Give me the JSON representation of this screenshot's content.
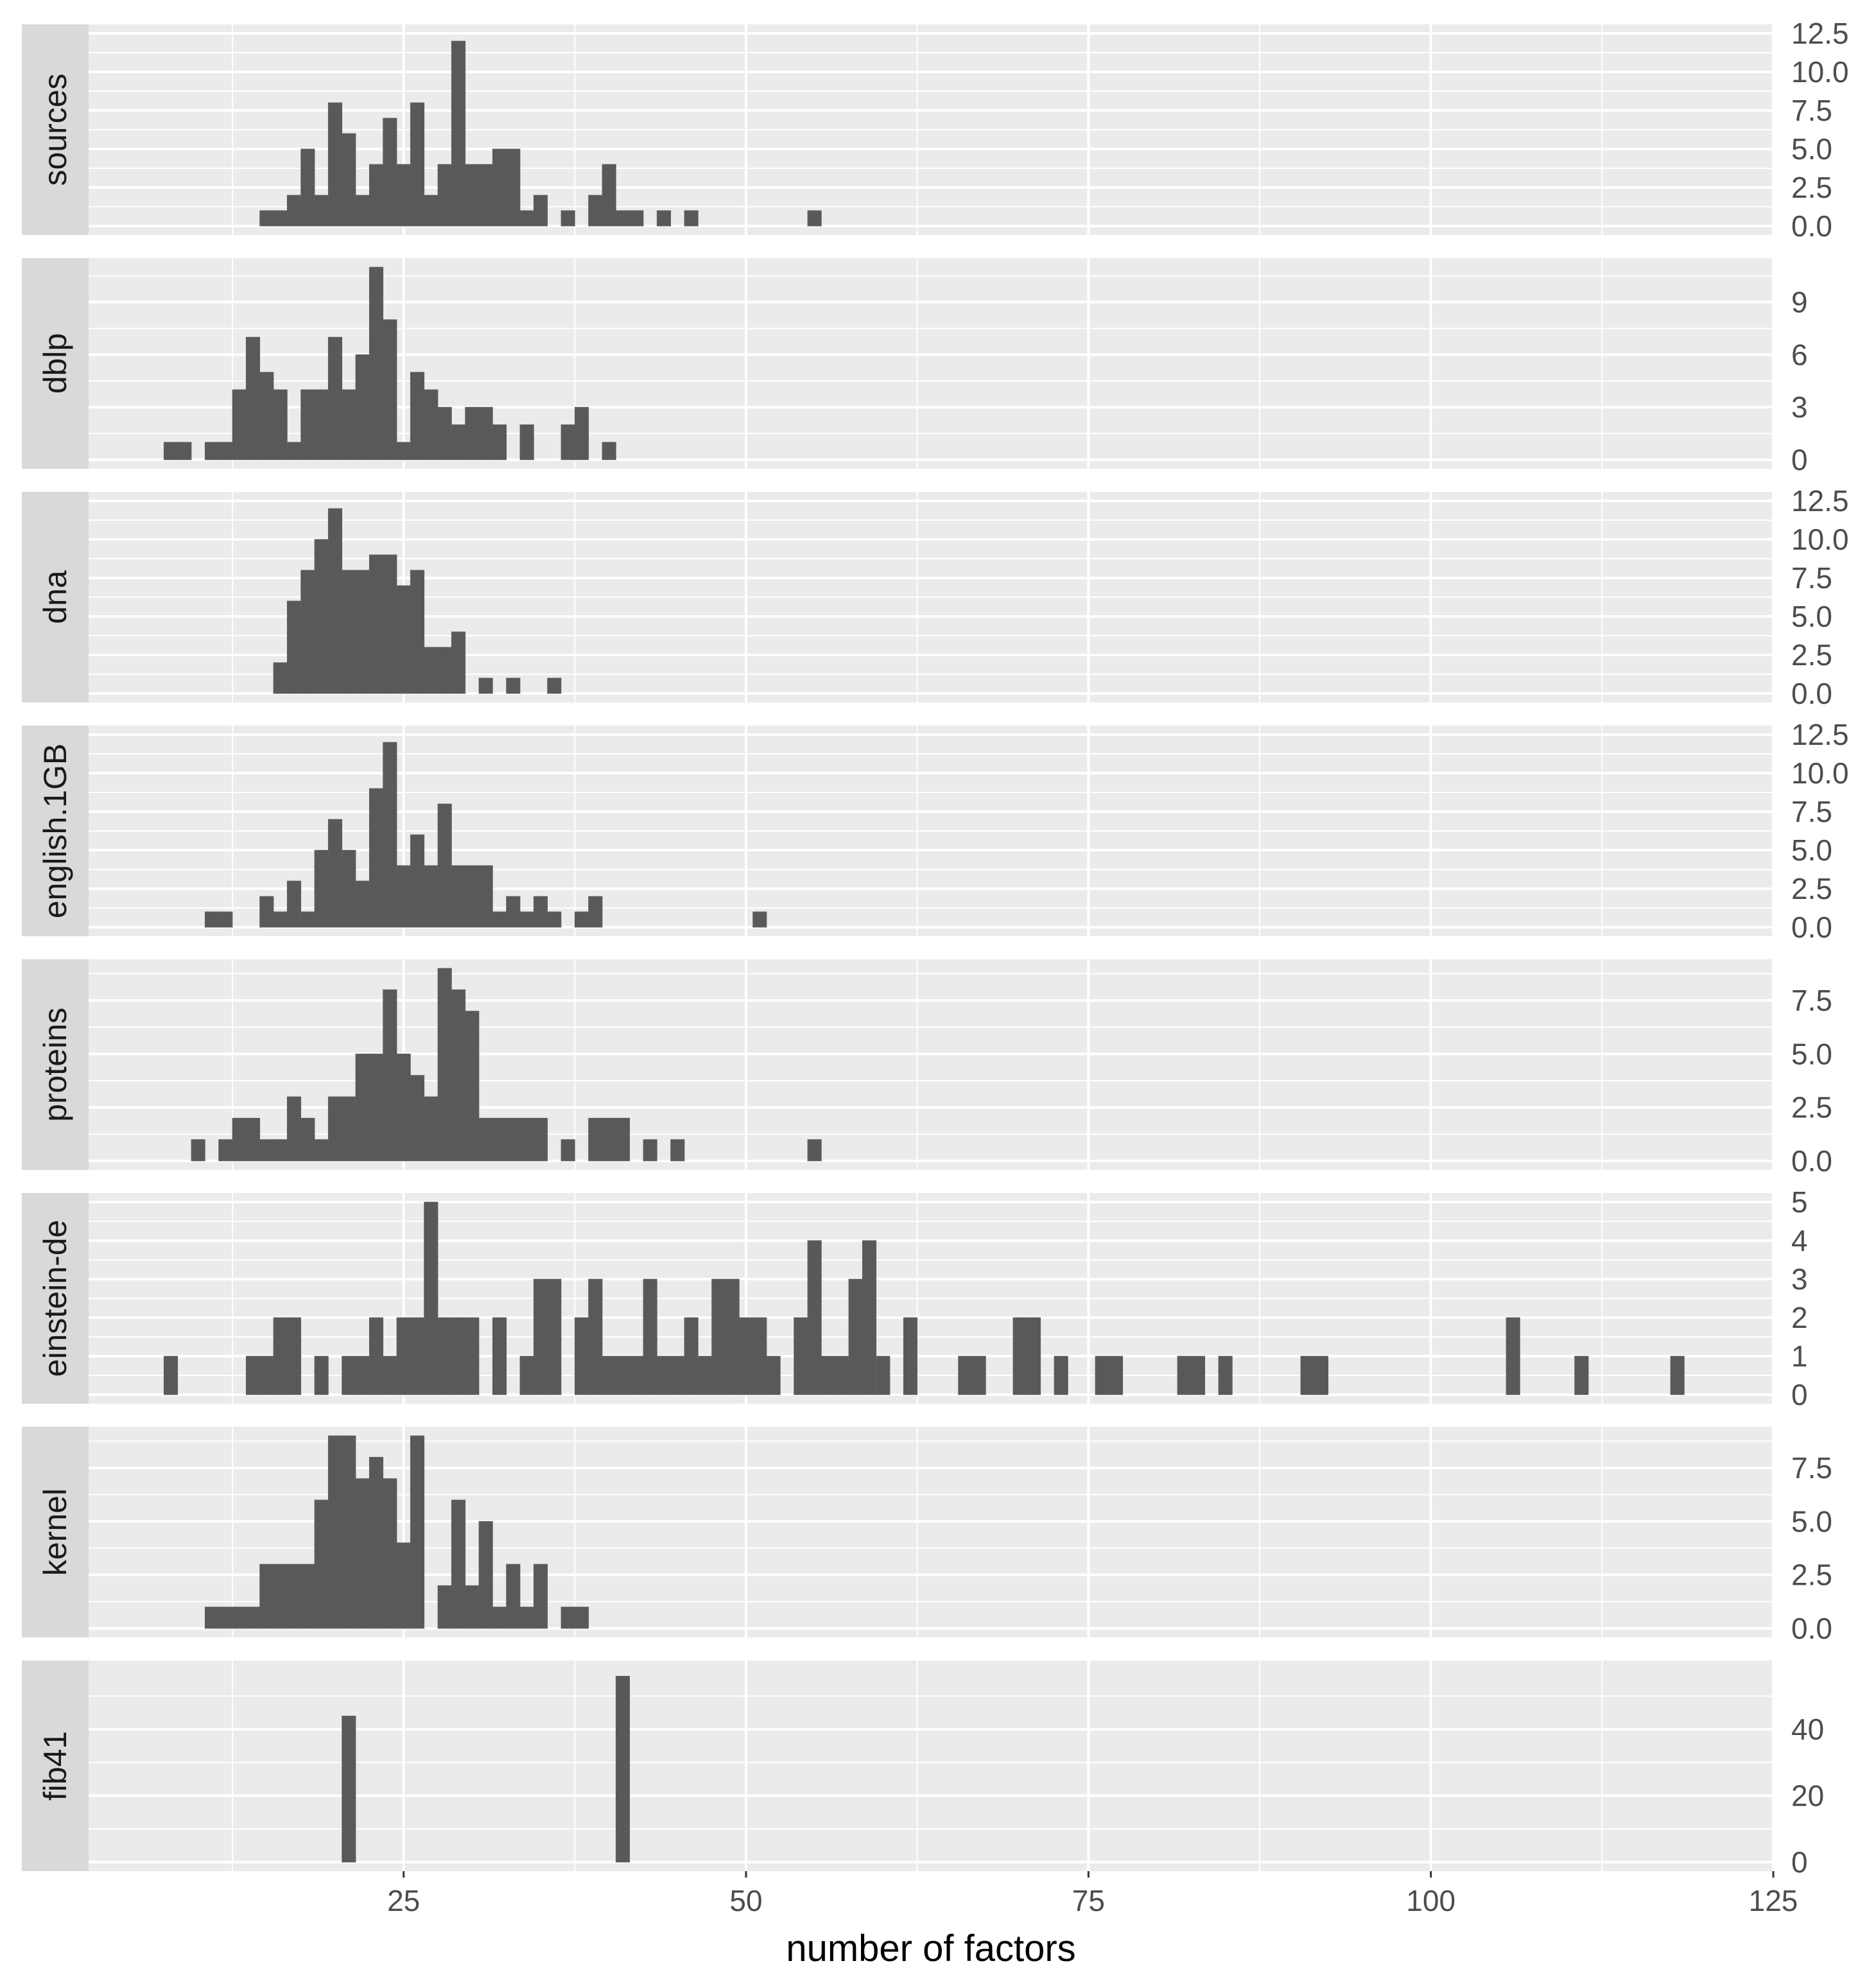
{
  "chart_data": {
    "type": "bar",
    "xlabel": "number of factors",
    "xlim": [
      2,
      125
    ],
    "x_ticks": [
      25,
      50,
      75,
      100,
      125
    ],
    "bin_width": 1,
    "grid": true,
    "bar_color": "#595959",
    "panel_bg": "#ebebeb",
    "strip_bg": "#d9d9d9",
    "panels": [
      {
        "name": "sources",
        "ylim": [
          0,
          12.5
        ],
        "y_ticks": [
          0,
          2.5,
          5,
          7.5,
          10,
          12.5
        ],
        "y_tick_labels": [
          "0.0",
          "2.5",
          "5.0",
          "7.5",
          "10.0",
          "12.5"
        ],
        "bins": [
          [
            15,
            1
          ],
          [
            16,
            1
          ],
          [
            17,
            2
          ],
          [
            18,
            5
          ],
          [
            19,
            2
          ],
          [
            20,
            8
          ],
          [
            21,
            6
          ],
          [
            22,
            2
          ],
          [
            23,
            4
          ],
          [
            24,
            7
          ],
          [
            25,
            4
          ],
          [
            26,
            8
          ],
          [
            27,
            2
          ],
          [
            28,
            4
          ],
          [
            29,
            12
          ],
          [
            30,
            4
          ],
          [
            31,
            4
          ],
          [
            32,
            5
          ],
          [
            33,
            5
          ],
          [
            34,
            1
          ],
          [
            35,
            2
          ],
          [
            37,
            1
          ],
          [
            39,
            2
          ],
          [
            40,
            4
          ],
          [
            41,
            1
          ],
          [
            42,
            1
          ],
          [
            44,
            1
          ],
          [
            46,
            1
          ],
          [
            55,
            1
          ]
        ]
      },
      {
        "name": "dblp",
        "ylim": [
          0,
          11
        ],
        "y_ticks": [
          0,
          3,
          6,
          9
        ],
        "y_tick_labels": [
          "0",
          "3",
          "6",
          "9"
        ],
        "bins": [
          [
            8,
            1
          ],
          [
            9,
            1
          ],
          [
            11,
            1
          ],
          [
            12,
            1
          ],
          [
            13,
            4
          ],
          [
            14,
            7
          ],
          [
            15,
            5
          ],
          [
            16,
            4
          ],
          [
            17,
            1
          ],
          [
            18,
            4
          ],
          [
            19,
            4
          ],
          [
            20,
            7
          ],
          [
            21,
            4
          ],
          [
            22,
            6
          ],
          [
            23,
            11
          ],
          [
            24,
            8
          ],
          [
            25,
            1
          ],
          [
            26,
            5
          ],
          [
            27,
            4
          ],
          [
            28,
            3
          ],
          [
            29,
            2
          ],
          [
            30,
            3
          ],
          [
            31,
            3
          ],
          [
            32,
            2
          ],
          [
            34,
            2
          ],
          [
            37,
            2
          ],
          [
            38,
            3
          ],
          [
            40,
            1
          ]
        ]
      },
      {
        "name": "dna",
        "ylim": [
          0,
          12.5
        ],
        "y_ticks": [
          0,
          2.5,
          5,
          7.5,
          10,
          12.5
        ],
        "y_tick_labels": [
          "0.0",
          "2.5",
          "5.0",
          "7.5",
          "10.0",
          "12.5"
        ],
        "bins": [
          [
            16,
            2
          ],
          [
            17,
            6
          ],
          [
            18,
            8
          ],
          [
            19,
            10
          ],
          [
            20,
            12
          ],
          [
            21,
            8
          ],
          [
            22,
            8
          ],
          [
            23,
            9
          ],
          [
            24,
            9
          ],
          [
            25,
            7
          ],
          [
            26,
            8
          ],
          [
            27,
            3
          ],
          [
            28,
            3
          ],
          [
            29,
            4
          ],
          [
            31,
            1
          ],
          [
            33,
            1
          ],
          [
            36,
            1
          ]
        ]
      },
      {
        "name": "english.1GB",
        "ylim": [
          0,
          12.5
        ],
        "y_ticks": [
          0,
          2.5,
          5,
          7.5,
          10,
          12.5
        ],
        "y_tick_labels": [
          "0.0",
          "2.5",
          "5.0",
          "7.5",
          "10.0",
          "12.5"
        ],
        "bins": [
          [
            11,
            1
          ],
          [
            12,
            1
          ],
          [
            15,
            2
          ],
          [
            16,
            1
          ],
          [
            17,
            3
          ],
          [
            18,
            1
          ],
          [
            19,
            5
          ],
          [
            20,
            7
          ],
          [
            21,
            5
          ],
          [
            22,
            3
          ],
          [
            23,
            9
          ],
          [
            24,
            12
          ],
          [
            25,
            4
          ],
          [
            26,
            6
          ],
          [
            27,
            4
          ],
          [
            28,
            8
          ],
          [
            29,
            4
          ],
          [
            30,
            4
          ],
          [
            31,
            4
          ],
          [
            32,
            1
          ],
          [
            33,
            2
          ],
          [
            34,
            1
          ],
          [
            35,
            2
          ],
          [
            36,
            1
          ],
          [
            38,
            1
          ],
          [
            39,
            2
          ],
          [
            51,
            1
          ]
        ]
      },
      {
        "name": "proteins",
        "ylim": [
          0,
          9
        ],
        "y_ticks": [
          0,
          2.5,
          5,
          7.5
        ],
        "y_tick_labels": [
          "0.0",
          "2.5",
          "5.0",
          "7.5"
        ],
        "bins": [
          [
            10,
            1
          ],
          [
            12,
            1
          ],
          [
            13,
            2
          ],
          [
            14,
            2
          ],
          [
            15,
            1
          ],
          [
            16,
            1
          ],
          [
            17,
            3
          ],
          [
            18,
            2
          ],
          [
            19,
            1
          ],
          [
            20,
            3
          ],
          [
            21,
            3
          ],
          [
            22,
            5
          ],
          [
            23,
            5
          ],
          [
            24,
            8
          ],
          [
            25,
            5
          ],
          [
            26,
            4
          ],
          [
            27,
            3
          ],
          [
            28,
            9
          ],
          [
            29,
            8
          ],
          [
            30,
            7
          ],
          [
            31,
            2
          ],
          [
            32,
            2
          ],
          [
            33,
            2
          ],
          [
            34,
            2
          ],
          [
            35,
            2
          ],
          [
            37,
            1
          ],
          [
            39,
            2
          ],
          [
            40,
            2
          ],
          [
            41,
            2
          ],
          [
            43,
            1
          ],
          [
            45,
            1
          ],
          [
            55,
            1
          ]
        ]
      },
      {
        "name": "einstein-de",
        "ylim": [
          0,
          5
        ],
        "y_ticks": [
          0,
          1,
          2,
          3,
          4,
          5
        ],
        "y_tick_labels": [
          "0",
          "1",
          "2",
          "3",
          "4",
          "5"
        ],
        "bins": [
          [
            8,
            1
          ],
          [
            14,
            1
          ],
          [
            15,
            1
          ],
          [
            16,
            2
          ],
          [
            17,
            2
          ],
          [
            19,
            1
          ],
          [
            21,
            1
          ],
          [
            22,
            1
          ],
          [
            23,
            2
          ],
          [
            24,
            1
          ],
          [
            25,
            2
          ],
          [
            26,
            2
          ],
          [
            27,
            5
          ],
          [
            28,
            2
          ],
          [
            29,
            2
          ],
          [
            30,
            2
          ],
          [
            32,
            2
          ],
          [
            34,
            1
          ],
          [
            35,
            3
          ],
          [
            36,
            3
          ],
          [
            38,
            2
          ],
          [
            39,
            3
          ],
          [
            40,
            1
          ],
          [
            41,
            1
          ],
          [
            42,
            1
          ],
          [
            43,
            3
          ],
          [
            44,
            1
          ],
          [
            45,
            1
          ],
          [
            46,
            2
          ],
          [
            47,
            1
          ],
          [
            48,
            3
          ],
          [
            49,
            3
          ],
          [
            50,
            2
          ],
          [
            51,
            2
          ],
          [
            52,
            1
          ],
          [
            54,
            2
          ],
          [
            55,
            4
          ],
          [
            56,
            1
          ],
          [
            57,
            1
          ],
          [
            58,
            3
          ],
          [
            59,
            4
          ],
          [
            60,
            1
          ],
          [
            62,
            2
          ],
          [
            66,
            1
          ],
          [
            67,
            1
          ],
          [
            70,
            2
          ],
          [
            71,
            2
          ],
          [
            73,
            1
          ],
          [
            76,
            1
          ],
          [
            77,
            1
          ],
          [
            82,
            1
          ],
          [
            83,
            1
          ],
          [
            85,
            1
          ],
          [
            91,
            1
          ],
          [
            92,
            1
          ],
          [
            106,
            2
          ],
          [
            111,
            1
          ],
          [
            118,
            1
          ]
        ]
      },
      {
        "name": "kernel",
        "ylim": [
          0,
          9
        ],
        "y_ticks": [
          0,
          2.5,
          5,
          7.5
        ],
        "y_tick_labels": [
          "0.0",
          "2.5",
          "5.0",
          "7.5"
        ],
        "bins": [
          [
            11,
            1
          ],
          [
            12,
            1
          ],
          [
            13,
            1
          ],
          [
            14,
            1
          ],
          [
            15,
            3
          ],
          [
            16,
            3
          ],
          [
            17,
            3
          ],
          [
            18,
            3
          ],
          [
            19,
            6
          ],
          [
            20,
            9
          ],
          [
            21,
            9
          ],
          [
            22,
            7
          ],
          [
            23,
            8
          ],
          [
            24,
            7
          ],
          [
            25,
            4
          ],
          [
            26,
            9
          ],
          [
            28,
            2
          ],
          [
            29,
            6
          ],
          [
            30,
            2
          ],
          [
            31,
            5
          ],
          [
            32,
            1
          ],
          [
            33,
            3
          ],
          [
            34,
            1
          ],
          [
            35,
            3
          ],
          [
            37,
            1
          ],
          [
            38,
            1
          ]
        ]
      },
      {
        "name": "fib41",
        "ylim": [
          0,
          58
        ],
        "y_ticks": [
          0,
          20,
          40
        ],
        "y_tick_labels": [
          "0",
          "20",
          "40"
        ],
        "bins": [
          [
            21,
            44
          ],
          [
            41,
            56
          ]
        ]
      }
    ]
  }
}
